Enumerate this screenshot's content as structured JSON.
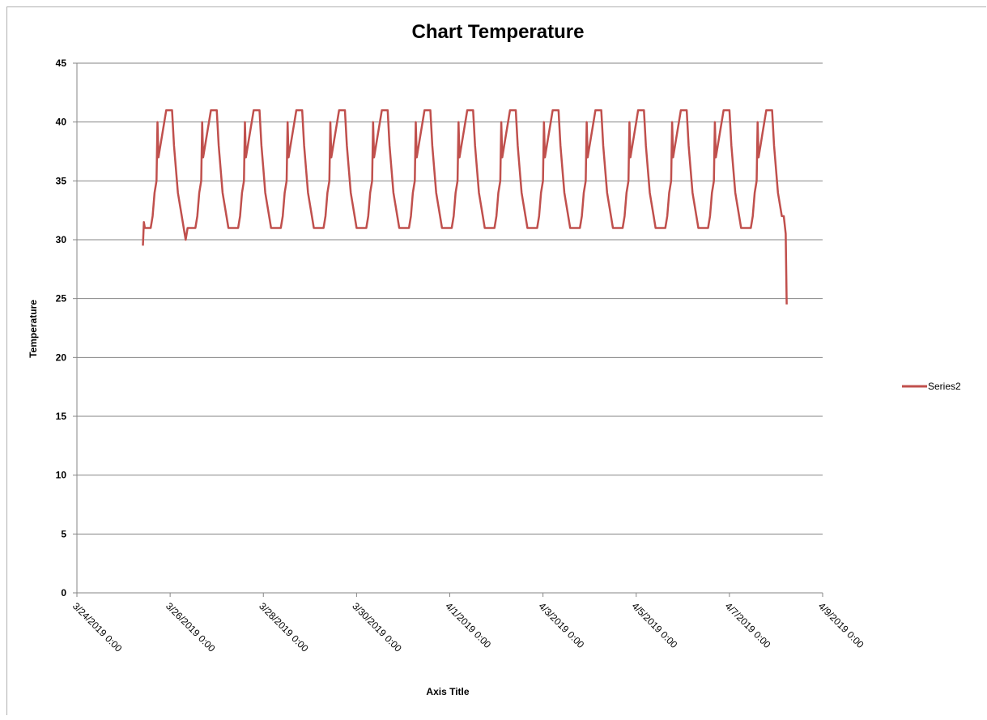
{
  "chart_data": {
    "type": "line",
    "title": "Chart Temperature",
    "xlabel": "Axis Title",
    "ylabel": "Temperature",
    "ylim": [
      0,
      45
    ],
    "y_ticks": [
      "0",
      "5",
      "10",
      "15",
      "20",
      "25",
      "30",
      "35",
      "40",
      "45"
    ],
    "x_ticks": [
      "3/24/2019 0:00",
      "3/26/2019 0:00",
      "3/28/2019 0:00",
      "3/30/2019 0:00",
      "4/1/2019 0:00",
      "4/3/2019 0:00",
      "4/5/2019 0:00",
      "4/7/2019 0:00",
      "4/9/2019 0:00"
    ],
    "x_range": [
      "3/24/2019 0:00",
      "4/9/2019 0:00"
    ],
    "grid": true,
    "legend_position": "right",
    "series": [
      {
        "name": "Series2",
        "color": "#c0504d",
        "points": [
          [
            "3/25/2019 10:00",
            29.5
          ],
          [
            "3/25/2019 10:30",
            31.5
          ],
          [
            "3/25/2019 11:00",
            31
          ],
          [
            "3/25/2019 14:00",
            31
          ],
          [
            "3/25/2019 15:00",
            32
          ],
          [
            "3/25/2019 16:00",
            34
          ],
          [
            "3/25/2019 17:00",
            35
          ],
          [
            "3/25/2019 17:30",
            40
          ],
          [
            "3/25/2019 18:00",
            37
          ],
          [
            "3/25/2019 19:00",
            38
          ],
          [
            "3/25/2019 20:00",
            39
          ],
          [
            "3/25/2019 21:00",
            40
          ],
          [
            "3/25/2019 22:00",
            41
          ],
          [
            "3/26/2019 1:00",
            41
          ],
          [
            "3/26/2019 2:00",
            38
          ],
          [
            "3/26/2019 3:00",
            36
          ],
          [
            "3/26/2019 4:00",
            34
          ],
          [
            "3/26/2019 5:00",
            33
          ],
          [
            "3/26/2019 6:00",
            32
          ],
          [
            "3/26/2019 7:00",
            31
          ],
          [
            "3/26/2019 8:00",
            30
          ],
          [
            "3/26/2019 9:00",
            31
          ],
          [
            "3/26/2019 13:00",
            31
          ],
          [
            "3/26/2019 14:00",
            32
          ],
          [
            "3/26/2019 15:00",
            34
          ],
          [
            "3/26/2019 16:00",
            35
          ],
          [
            "3/26/2019 16:30",
            40
          ],
          [
            "3/26/2019 17:00",
            37
          ],
          [
            "3/26/2019 18:00",
            38
          ],
          [
            "3/26/2019 19:00",
            39
          ],
          [
            "3/26/2019 20:00",
            40
          ],
          [
            "3/26/2019 21:00",
            41
          ],
          [
            "3/27/2019 0:00",
            41
          ],
          [
            "3/27/2019 1:00",
            38
          ],
          [
            "3/27/2019 2:00",
            36
          ],
          [
            "3/27/2019 3:00",
            34
          ],
          [
            "3/27/2019 4:00",
            33
          ],
          [
            "3/27/2019 5:00",
            32
          ],
          [
            "3/27/2019 6:00",
            31
          ],
          [
            "3/27/2019 11:00",
            31
          ],
          [
            "3/27/2019 12:00",
            32
          ],
          [
            "3/27/2019 13:00",
            34
          ],
          [
            "3/27/2019 14:00",
            35
          ],
          [
            "3/27/2019 14:30",
            40
          ],
          [
            "3/27/2019 15:00",
            37
          ],
          [
            "3/27/2019 16:00",
            38
          ],
          [
            "3/27/2019 17:00",
            39
          ],
          [
            "3/27/2019 18:00",
            40
          ],
          [
            "3/27/2019 19:00",
            41
          ],
          [
            "3/27/2019 22:00",
            41
          ],
          [
            "3/27/2019 23:00",
            38
          ],
          [
            "3/28/2019 0:00",
            36
          ],
          [
            "3/28/2019 1:00",
            34
          ],
          [
            "3/28/2019 2:00",
            33
          ],
          [
            "3/28/2019 3:00",
            32
          ],
          [
            "3/28/2019 4:00",
            31
          ],
          [
            "3/28/2019 9:00",
            31
          ],
          [
            "3/28/2019 10:00",
            32
          ],
          [
            "3/28/2019 11:00",
            34
          ],
          [
            "3/28/2019 12:00",
            35
          ],
          [
            "3/28/2019 12:30",
            40
          ],
          [
            "3/28/2019 13:00",
            37
          ],
          [
            "3/28/2019 14:00",
            38
          ],
          [
            "3/28/2019 15:00",
            39
          ],
          [
            "3/28/2019 16:00",
            40
          ],
          [
            "3/28/2019 17:00",
            41
          ],
          [
            "3/28/2019 20:00",
            41
          ],
          [
            "3/28/2019 21:00",
            38
          ],
          [
            "3/28/2019 22:00",
            36
          ],
          [
            "3/28/2019 23:00",
            34
          ],
          [
            "3/29/2019 0:00",
            33
          ],
          [
            "3/29/2019 1:00",
            32
          ],
          [
            "3/29/2019 2:00",
            31
          ],
          [
            "3/29/2019 7:00",
            31
          ],
          [
            "3/29/2019 8:00",
            32
          ],
          [
            "3/29/2019 9:00",
            34
          ],
          [
            "3/29/2019 10:00",
            35
          ],
          [
            "3/29/2019 10:30",
            40
          ],
          [
            "3/29/2019 11:00",
            37
          ],
          [
            "3/29/2019 12:00",
            38
          ],
          [
            "3/29/2019 13:00",
            39
          ],
          [
            "3/29/2019 14:00",
            40
          ],
          [
            "3/29/2019 15:00",
            41
          ],
          [
            "3/29/2019 18:00",
            41
          ],
          [
            "3/29/2019 19:00",
            38
          ],
          [
            "3/29/2019 20:00",
            36
          ],
          [
            "3/29/2019 21:00",
            34
          ],
          [
            "3/29/2019 22:00",
            33
          ],
          [
            "3/29/2019 23:00",
            32
          ],
          [
            "3/30/2019 0:00",
            31
          ],
          [
            "3/30/2019 5:00",
            31
          ],
          [
            "3/30/2019 6:00",
            32
          ],
          [
            "3/30/2019 7:00",
            34
          ],
          [
            "3/30/2019 8:00",
            35
          ],
          [
            "3/30/2019 8:30",
            40
          ],
          [
            "3/30/2019 9:00",
            37
          ],
          [
            "3/30/2019 10:00",
            38
          ],
          [
            "3/30/2019 11:00",
            39
          ],
          [
            "3/30/2019 12:00",
            40
          ],
          [
            "3/30/2019 13:00",
            41
          ],
          [
            "3/30/2019 16:00",
            41
          ],
          [
            "3/30/2019 17:00",
            38
          ],
          [
            "3/30/2019 18:00",
            36
          ],
          [
            "3/30/2019 19:00",
            34
          ],
          [
            "3/30/2019 20:00",
            33
          ],
          [
            "3/30/2019 21:00",
            32
          ],
          [
            "3/30/2019 22:00",
            31
          ],
          [
            "3/31/2019 3:00",
            31
          ],
          [
            "3/31/2019 4:00",
            32
          ],
          [
            "3/31/2019 5:00",
            34
          ],
          [
            "3/31/2019 6:00",
            35
          ],
          [
            "3/31/2019 6:30",
            40
          ],
          [
            "3/31/2019 7:00",
            37
          ],
          [
            "3/31/2019 8:00",
            38
          ],
          [
            "3/31/2019 9:00",
            39
          ],
          [
            "3/31/2019 10:00",
            40
          ],
          [
            "3/31/2019 11:00",
            41
          ],
          [
            "3/31/2019 14:00",
            41
          ],
          [
            "3/31/2019 15:00",
            38
          ],
          [
            "3/31/2019 16:00",
            36
          ],
          [
            "3/31/2019 17:00",
            34
          ],
          [
            "3/31/2019 18:00",
            33
          ],
          [
            "3/31/2019 19:00",
            32
          ],
          [
            "3/31/2019 20:00",
            31
          ],
          [
            "4/1/2019 1:00",
            31
          ],
          [
            "4/1/2019 2:00",
            32
          ],
          [
            "4/1/2019 3:00",
            34
          ],
          [
            "4/1/2019 4:00",
            35
          ],
          [
            "4/1/2019 4:30",
            40
          ],
          [
            "4/1/2019 5:00",
            37
          ],
          [
            "4/1/2019 6:00",
            38
          ],
          [
            "4/1/2019 7:00",
            39
          ],
          [
            "4/1/2019 8:00",
            40
          ],
          [
            "4/1/2019 9:00",
            41
          ],
          [
            "4/1/2019 12:00",
            41
          ],
          [
            "4/1/2019 13:00",
            38
          ],
          [
            "4/1/2019 14:00",
            36
          ],
          [
            "4/1/2019 15:00",
            34
          ],
          [
            "4/1/2019 16:00",
            33
          ],
          [
            "4/1/2019 17:00",
            32
          ],
          [
            "4/1/2019 18:00",
            31
          ],
          [
            "4/1/2019 23:00",
            31
          ],
          [
            "4/2/2019 0:00",
            32
          ],
          [
            "4/2/2019 1:00",
            34
          ],
          [
            "4/2/2019 2:00",
            35
          ],
          [
            "4/2/2019 2:30",
            40
          ],
          [
            "4/2/2019 3:00",
            37
          ],
          [
            "4/2/2019 4:00",
            38
          ],
          [
            "4/2/2019 5:00",
            39
          ],
          [
            "4/2/2019 6:00",
            40
          ],
          [
            "4/2/2019 7:00",
            41
          ],
          [
            "4/2/2019 10:00",
            41
          ],
          [
            "4/2/2019 11:00",
            38
          ],
          [
            "4/2/2019 12:00",
            36
          ],
          [
            "4/2/2019 13:00",
            34
          ],
          [
            "4/2/2019 14:00",
            33
          ],
          [
            "4/2/2019 15:00",
            32
          ],
          [
            "4/2/2019 16:00",
            31
          ],
          [
            "4/2/2019 21:00",
            31
          ],
          [
            "4/2/2019 22:00",
            32
          ],
          [
            "4/2/2019 23:00",
            34
          ],
          [
            "4/3/2019 0:00",
            35
          ],
          [
            "4/3/2019 0:30",
            40
          ],
          [
            "4/3/2019 1:00",
            37
          ],
          [
            "4/3/2019 2:00",
            38
          ],
          [
            "4/3/2019 3:00",
            39
          ],
          [
            "4/3/2019 4:00",
            40
          ],
          [
            "4/3/2019 5:00",
            41
          ],
          [
            "4/3/2019 8:00",
            41
          ],
          [
            "4/3/2019 9:00",
            38
          ],
          [
            "4/3/2019 10:00",
            36
          ],
          [
            "4/3/2019 11:00",
            34
          ],
          [
            "4/3/2019 12:00",
            33
          ],
          [
            "4/3/2019 13:00",
            32
          ],
          [
            "4/3/2019 14:00",
            31
          ],
          [
            "4/3/2019 19:00",
            31
          ],
          [
            "4/3/2019 20:00",
            32
          ],
          [
            "4/3/2019 21:00",
            34
          ],
          [
            "4/3/2019 22:00",
            35
          ],
          [
            "4/3/2019 22:30",
            40
          ],
          [
            "4/3/2019 23:00",
            37
          ],
          [
            "4/4/2019 0:00",
            38
          ],
          [
            "4/4/2019 1:00",
            39
          ],
          [
            "4/4/2019 2:00",
            40
          ],
          [
            "4/4/2019 3:00",
            41
          ],
          [
            "4/4/2019 6:00",
            41
          ],
          [
            "4/4/2019 7:00",
            38
          ],
          [
            "4/4/2019 8:00",
            36
          ],
          [
            "4/4/2019 9:00",
            34
          ],
          [
            "4/4/2019 10:00",
            33
          ],
          [
            "4/4/2019 11:00",
            32
          ],
          [
            "4/4/2019 12:00",
            31
          ],
          [
            "4/4/2019 17:00",
            31
          ],
          [
            "4/4/2019 18:00",
            32
          ],
          [
            "4/4/2019 19:00",
            34
          ],
          [
            "4/4/2019 20:00",
            35
          ],
          [
            "4/4/2019 20:30",
            40
          ],
          [
            "4/4/2019 21:00",
            37
          ],
          [
            "4/4/2019 22:00",
            38
          ],
          [
            "4/4/2019 23:00",
            39
          ],
          [
            "4/5/2019 0:00",
            40
          ],
          [
            "4/5/2019 1:00",
            41
          ],
          [
            "4/5/2019 4:00",
            41
          ],
          [
            "4/5/2019 5:00",
            38
          ],
          [
            "4/5/2019 6:00",
            36
          ],
          [
            "4/5/2019 7:00",
            34
          ],
          [
            "4/5/2019 8:00",
            33
          ],
          [
            "4/5/2019 9:00",
            32
          ],
          [
            "4/5/2019 10:00",
            31
          ],
          [
            "4/5/2019 15:00",
            31
          ],
          [
            "4/5/2019 16:00",
            32
          ],
          [
            "4/5/2019 17:00",
            34
          ],
          [
            "4/5/2019 18:00",
            35
          ],
          [
            "4/5/2019 18:30",
            40
          ],
          [
            "4/5/2019 19:00",
            37
          ],
          [
            "4/5/2019 20:00",
            38
          ],
          [
            "4/5/2019 21:00",
            39
          ],
          [
            "4/5/2019 22:00",
            40
          ],
          [
            "4/5/2019 23:00",
            41
          ],
          [
            "4/6/2019 2:00",
            41
          ],
          [
            "4/6/2019 3:00",
            38
          ],
          [
            "4/6/2019 4:00",
            36
          ],
          [
            "4/6/2019 5:00",
            34
          ],
          [
            "4/6/2019 6:00",
            33
          ],
          [
            "4/6/2019 7:00",
            32
          ],
          [
            "4/6/2019 8:00",
            31
          ],
          [
            "4/6/2019 13:00",
            31
          ],
          [
            "4/6/2019 14:00",
            32
          ],
          [
            "4/6/2019 15:00",
            34
          ],
          [
            "4/6/2019 16:00",
            35
          ],
          [
            "4/6/2019 16:30",
            40
          ],
          [
            "4/6/2019 17:00",
            37
          ],
          [
            "4/6/2019 18:00",
            38
          ],
          [
            "4/6/2019 19:00",
            39
          ],
          [
            "4/6/2019 20:00",
            40
          ],
          [
            "4/6/2019 21:00",
            41
          ],
          [
            "4/7/2019 0:00",
            41
          ],
          [
            "4/7/2019 1:00",
            38
          ],
          [
            "4/7/2019 2:00",
            36
          ],
          [
            "4/7/2019 3:00",
            34
          ],
          [
            "4/7/2019 4:00",
            33
          ],
          [
            "4/7/2019 5:00",
            32
          ],
          [
            "4/7/2019 6:00",
            31
          ],
          [
            "4/7/2019 11:00",
            31
          ],
          [
            "4/7/2019 12:00",
            32
          ],
          [
            "4/7/2019 13:00",
            34
          ],
          [
            "4/7/2019 14:00",
            35
          ],
          [
            "4/7/2019 14:30",
            40
          ],
          [
            "4/7/2019 15:00",
            37
          ],
          [
            "4/7/2019 16:00",
            38
          ],
          [
            "4/7/2019 17:00",
            39
          ],
          [
            "4/7/2019 18:00",
            40
          ],
          [
            "4/7/2019 19:00",
            41
          ],
          [
            "4/7/2019 22:00",
            41
          ],
          [
            "4/7/2019 23:00",
            38
          ],
          [
            "4/8/2019 0:00",
            36
          ],
          [
            "4/8/2019 1:00",
            34
          ],
          [
            "4/8/2019 2:00",
            33
          ],
          [
            "4/8/2019 3:00",
            32
          ],
          [
            "4/8/2019 4:00",
            32
          ],
          [
            "4/8/2019 5:00",
            30.5
          ],
          [
            "4/8/2019 5:30",
            24.5
          ]
        ]
      }
    ]
  }
}
